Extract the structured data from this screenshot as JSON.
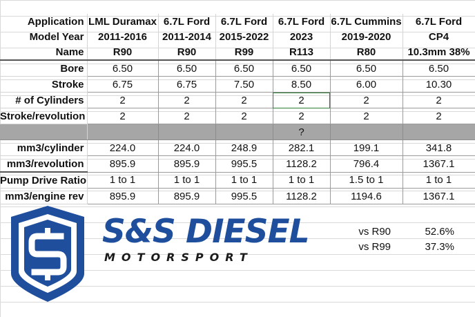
{
  "header": {
    "application_label": "Application",
    "model_year_label": "Model Year",
    "name_label": "Name",
    "columns": [
      {
        "application": "LML Duramax",
        "year": "2011-2016",
        "name": "R90"
      },
      {
        "application": "6.7L Ford",
        "year": "2011-2014",
        "name": "R90"
      },
      {
        "application": "6.7L Ford",
        "year": "2015-2022",
        "name": "R99"
      },
      {
        "application": "6.7L Ford",
        "year": "2023",
        "name": "R113"
      },
      {
        "application": "6.7L Cummins",
        "year": "2019-2020",
        "name": "R80"
      },
      {
        "application": "6.7L Ford",
        "year": "CP4",
        "name": "10.3mm 38%"
      }
    ]
  },
  "rows": {
    "bore": {
      "label": "Bore",
      "values": [
        "6.50",
        "6.50",
        "6.50",
        "6.50",
        "6.50",
        "6.50"
      ]
    },
    "stroke": {
      "label": "Stroke",
      "values": [
        "6.75",
        "6.75",
        "7.50",
        "8.50",
        "6.00",
        "10.30"
      ]
    },
    "cylinders": {
      "label": "# of Cylinders",
      "values": [
        "2",
        "2",
        "2",
        "2",
        "2",
        "2"
      ]
    },
    "stroke_rev": {
      "label": "Stroke/revolution",
      "values": [
        "2",
        "2",
        "2",
        "2",
        "2",
        "2"
      ]
    },
    "gray": {
      "values": [
        "",
        "",
        "",
        "?",
        "",
        ""
      ]
    },
    "mm3_cyl": {
      "label": "mm3/cylinder",
      "values": [
        "224.0",
        "224.0",
        "248.9",
        "282.1",
        "199.1",
        "341.8"
      ]
    },
    "mm3_rev": {
      "label": "mm3/revolution",
      "values": [
        "895.9",
        "895.9",
        "995.5",
        "1128.2",
        "796.4",
        "1367.1"
      ]
    },
    "ratio": {
      "label": "Pump Drive Ratio",
      "values": [
        "1 to 1",
        "1 to 1",
        "1 to 1",
        "1 to 1",
        "1.5 to 1",
        "1 to 1"
      ]
    },
    "mm3_engine": {
      "label": "mm3/engine rev",
      "values": [
        "895.9",
        "895.9",
        "995.5",
        "1128.2",
        "1194.6",
        "1367.1"
      ]
    }
  },
  "comparisons": [
    {
      "label": "vs R90",
      "value": "52.6%"
    },
    {
      "label": "vs R99",
      "value": "37.3%"
    }
  ],
  "brand": {
    "name": "S&S DIESEL",
    "sub": "MOTORSPORT",
    "color": "#1f4f9c"
  }
}
